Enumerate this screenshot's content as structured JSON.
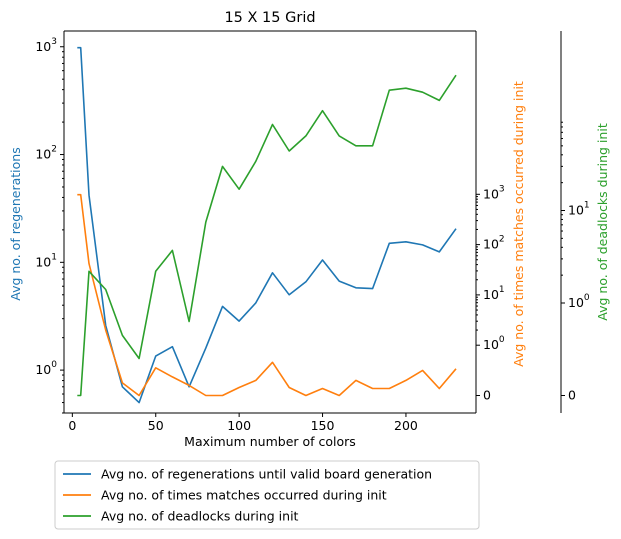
{
  "chart_data": {
    "type": "line",
    "title": "15 X 15 Grid",
    "xlabel": "Maximum number of colors",
    "x": [
      3,
      5,
      10,
      20,
      30,
      40,
      50,
      60,
      70,
      80,
      90,
      100,
      110,
      120,
      130,
      140,
      150,
      160,
      170,
      180,
      190,
      200,
      210,
      220,
      230
    ],
    "xlim": [
      -5,
      242
    ],
    "xticks": [
      0,
      50,
      100,
      150,
      200
    ],
    "axes": {
      "left": {
        "label": "Avg no. of regenerations",
        "color": "#1f77b4",
        "scale": "log",
        "ylim": [
          0.4,
          1400
        ],
        "ticks": [
          1,
          10,
          100,
          1000
        ],
        "tick_labels": [
          "10",
          "10",
          "10",
          "10"
        ],
        "tick_exponents": [
          "0",
          "1",
          "2",
          "3"
        ]
      },
      "right1": {
        "label": "Avg no. of times matches occurred during init",
        "color": "#ff7f0e",
        "scale": "symlog",
        "linthresh": 1,
        "ticks": [
          0,
          1,
          10,
          100,
          1000
        ],
        "tick_labels": [
          "0",
          "10",
          "10",
          "10",
          "10"
        ],
        "tick_exponents": [
          "",
          "0",
          "1",
          "2",
          "3"
        ]
      },
      "right2": {
        "label": "Avg no. of deadlocks during init",
        "color": "#2ca02c",
        "scale": "symlog",
        "linthresh": 1,
        "ticks": [
          0,
          1,
          10
        ],
        "tick_labels": [
          "0",
          "10",
          "10"
        ],
        "tick_exponents": [
          "",
          "0",
          "1"
        ]
      }
    },
    "series": [
      {
        "name": "Avg no. of regenerations until valid board generation",
        "axis": "left",
        "color": "#1f77b4",
        "values": [
          980,
          980,
          42,
          2.6,
          0.7,
          0.5,
          1.35,
          1.65,
          0.7,
          1.6,
          3.9,
          2.85,
          4.2,
          8.0,
          5.0,
          6.6,
          10.5,
          6.7,
          5.8,
          5.7,
          15.0,
          15.5,
          14.5,
          12.5,
          20.5
        ]
      },
      {
        "name": "Avg no. of times matches occurred during init",
        "axis": "right1",
        "color": "#ff7f0e",
        "values": [
          980,
          980,
          42,
          2.0,
          0.25,
          0.0,
          0.55,
          0.37,
          0.2,
          0.0,
          0.0,
          0.16,
          0.3,
          0.66,
          0.16,
          0.0,
          0.14,
          0.0,
          0.3,
          0.14,
          0.14,
          0.3,
          0.5,
          0.14,
          0.53
        ]
      },
      {
        "name": "Avg no. of deadlocks during init",
        "axis": "right2",
        "color": "#2ca02c",
        "values": [
          0.0,
          0.0,
          2.2,
          1.4,
          0.65,
          0.4,
          2.2,
          3.7,
          0.8,
          7.5,
          30,
          17,
          34,
          85,
          44,
          64,
          120,
          64,
          50,
          50,
          200,
          210,
          190,
          155,
          290
        ]
      }
    ],
    "legend": {
      "placement": "below",
      "entries": [
        "Avg no. of regenerations until valid board generation",
        "Avg no. of times matches occurred during init",
        "Avg no. of deadlocks during init"
      ]
    },
    "grid": false
  }
}
